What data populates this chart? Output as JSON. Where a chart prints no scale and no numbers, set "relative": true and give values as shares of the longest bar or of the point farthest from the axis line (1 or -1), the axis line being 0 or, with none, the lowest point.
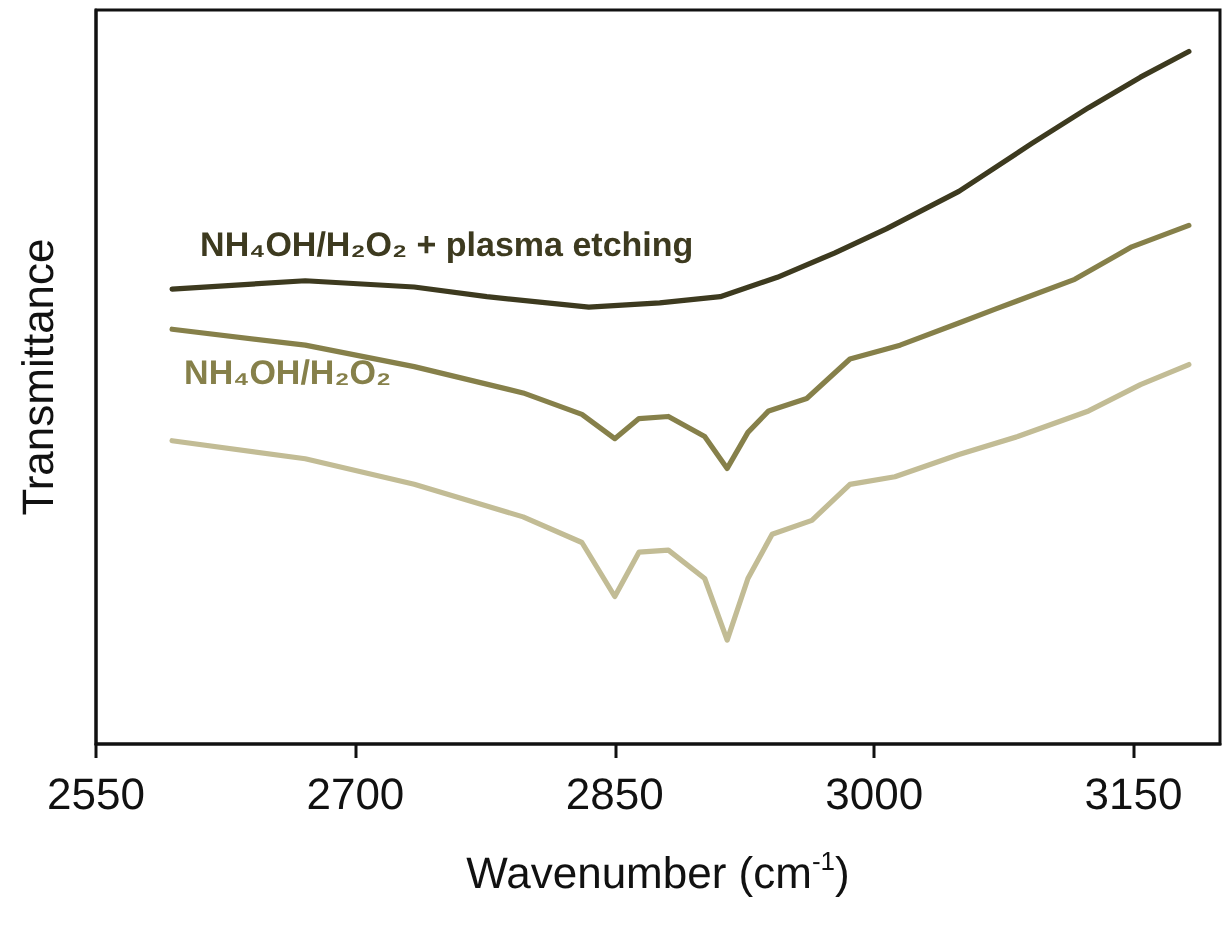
{
  "chart_data": {
    "type": "line",
    "relative": true,
    "xlabel": "Wavenumber (cm$^{-1}$)",
    "ylabel": "Transmittance",
    "xlim": [
      2550,
      3200
    ],
    "xticks": [
      2550,
      2700,
      2850,
      3000,
      3150
    ],
    "grid": false,
    "legend": false,
    "marker": "none",
    "line_style": "solid",
    "series": [
      {
        "name": "NH₄OH/H₂O₂ + plasma etching",
        "color": "#3d3a1f",
        "x": [
          2594,
          2671,
          2734,
          2776,
          2835,
          2876,
          2911,
          2944,
          2977,
          3007,
          3049,
          3091,
          3124,
          3154,
          3182
        ],
        "values": [
          0.657,
          0.669,
          0.66,
          0.646,
          0.631,
          0.637,
          0.646,
          0.674,
          0.709,
          0.744,
          0.798,
          0.867,
          0.919,
          0.963,
          1.0
        ]
      },
      {
        "name": "NH₄OH/H₂O₂",
        "color": "#86804a",
        "x": [
          2594,
          2671,
          2734,
          2797,
          2831,
          2850,
          2864,
          2881,
          2902,
          2915,
          2927,
          2939,
          2961,
          2986,
          3015,
          3049,
          3070,
          3116,
          3149,
          3182
        ],
        "values": [
          0.599,
          0.576,
          0.545,
          0.507,
          0.476,
          0.441,
          0.47,
          0.473,
          0.444,
          0.398,
          0.45,
          0.481,
          0.499,
          0.556,
          0.576,
          0.608,
          0.628,
          0.671,
          0.718,
          0.749
        ]
      },
      {
        "color": "#c2bc95",
        "x": [
          2594,
          2671,
          2734,
          2797,
          2831,
          2850,
          2864,
          2881,
          2902,
          2915,
          2927,
          2941,
          2964,
          2986,
          3012,
          3049,
          3083,
          3124,
          3154,
          3182
        ],
        "values": [
          0.438,
          0.412,
          0.375,
          0.328,
          0.291,
          0.213,
          0.277,
          0.28,
          0.239,
          0.15,
          0.239,
          0.303,
          0.323,
          0.375,
          0.386,
          0.418,
          0.444,
          0.481,
          0.519,
          0.548
        ]
      }
    ]
  }
}
